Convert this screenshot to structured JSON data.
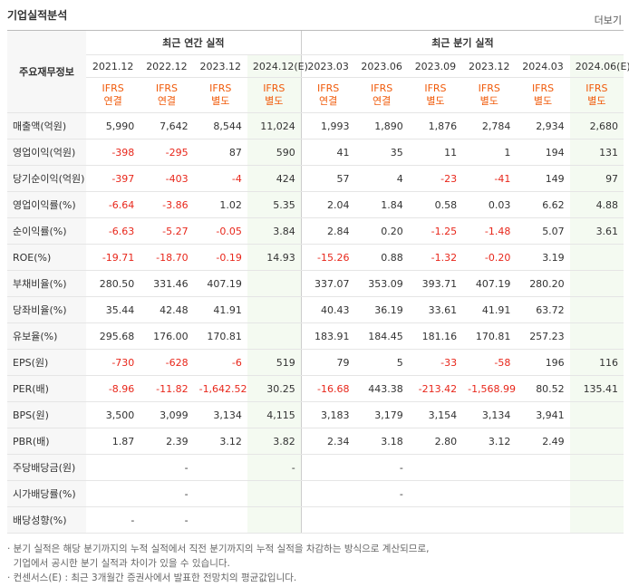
{
  "header": {
    "title": "기업실적분석",
    "more": "더보기"
  },
  "table": {
    "corner": "주요재무정보",
    "groups": [
      "최근 연간 실적",
      "최근 분기 실적"
    ],
    "periods": [
      "2021.12",
      "2022.12",
      "2023.12",
      "2024.12(E)",
      "2023.03",
      "2023.06",
      "2023.09",
      "2023.12",
      "2024.03",
      "2024.06(E)"
    ],
    "standards": [
      [
        "IFRS",
        "연결"
      ],
      [
        "IFRS",
        "연결"
      ],
      [
        "IFRS",
        "별도"
      ],
      [
        "IFRS",
        "별도"
      ],
      [
        "IFRS",
        "연결"
      ],
      [
        "IFRS",
        "연결"
      ],
      [
        "IFRS",
        "별도"
      ],
      [
        "IFRS",
        "별도"
      ],
      [
        "IFRS",
        "별도"
      ],
      [
        "IFRS",
        "별도"
      ]
    ],
    "rows": [
      {
        "label": "매출액(억원)",
        "cells": [
          "5,990",
          "7,642",
          "8,544",
          "11,024",
          "1,993",
          "1,890",
          "1,876",
          "2,784",
          "2,934",
          "2,680"
        ]
      },
      {
        "label": "영업이익(억원)",
        "cells": [
          "-398",
          "-295",
          "87",
          "590",
          "41",
          "35",
          "11",
          "1",
          "194",
          "131"
        ]
      },
      {
        "label": "당기순이익(억원)",
        "cells": [
          "-397",
          "-403",
          "-4",
          "424",
          "57",
          "4",
          "-23",
          "-41",
          "149",
          "97"
        ]
      },
      {
        "label": "영업이익률(%)",
        "cells": [
          "-6.64",
          "-3.86",
          "1.02",
          "5.35",
          "2.04",
          "1.84",
          "0.58",
          "0.03",
          "6.62",
          "4.88"
        ]
      },
      {
        "label": "순이익률(%)",
        "cells": [
          "-6.63",
          "-5.27",
          "-0.05",
          "3.84",
          "2.84",
          "0.20",
          "-1.25",
          "-1.48",
          "5.07",
          "3.61"
        ]
      },
      {
        "label": "ROE(%)",
        "cells": [
          "-19.71",
          "-18.70",
          "-0.19",
          "14.93",
          "-15.26",
          "0.88",
          "-1.32",
          "-0.20",
          "3.19",
          null
        ]
      },
      {
        "label": "부채비율(%)",
        "cells": [
          "280.50",
          "331.46",
          "407.19",
          null,
          "337.07",
          "353.09",
          "393.71",
          "407.19",
          "280.20",
          null
        ]
      },
      {
        "label": "당좌비율(%)",
        "cells": [
          "35.44",
          "42.48",
          "41.91",
          null,
          "40.43",
          "36.19",
          "33.61",
          "41.91",
          "63.72",
          null
        ]
      },
      {
        "label": "유보율(%)",
        "cells": [
          "295.68",
          "176.00",
          "170.81",
          null,
          "183.91",
          "184.45",
          "181.16",
          "170.81",
          "257.23",
          null
        ]
      },
      {
        "label": "EPS(원)",
        "cells": [
          "-730",
          "-628",
          "-6",
          "519",
          "79",
          "5",
          "-33",
          "-58",
          "196",
          "116"
        ]
      },
      {
        "label": "PER(배)",
        "cells": [
          "-8.96",
          "-11.82",
          "-1,642.52",
          "30.25",
          "-16.68",
          "443.38",
          "-213.42",
          "-1,568.99",
          "80.52",
          "135.41"
        ]
      },
      {
        "label": "BPS(원)",
        "cells": [
          "3,500",
          "3,099",
          "3,134",
          "4,115",
          "3,183",
          "3,179",
          "3,154",
          "3,134",
          "3,941",
          null
        ]
      },
      {
        "label": "PBR(배)",
        "cells": [
          "1.87",
          "2.39",
          "3.12",
          "3.82",
          "2.34",
          "3.18",
          "2.80",
          "3.12",
          "2.49",
          null
        ]
      },
      {
        "label": "주당배당금(원)",
        "cells": [
          null,
          "-",
          null,
          "-",
          null,
          "-",
          null,
          null,
          null,
          null
        ]
      },
      {
        "label": "시가배당률(%)",
        "cells": [
          null,
          "-",
          null,
          null,
          null,
          "-",
          null,
          null,
          null,
          null
        ]
      },
      {
        "label": "배당성향(%)",
        "cells": [
          "-",
          "-",
          null,
          null,
          null,
          null,
          null,
          null,
          null,
          null
        ]
      }
    ]
  },
  "notes": [
    "· 분기 실적은 해당 분기까지의 누적 실적에서 직전 분기까지의 누적 실적을 차감하는 방식으로 계산되므로,",
    "  기업에서 공시한 분기 실적과 차이가 있을 수 있습니다.",
    "· 컨센서스(E) : 최근 3개월간 증권사에서 발표한 전망치의 평균값입니다."
  ]
}
